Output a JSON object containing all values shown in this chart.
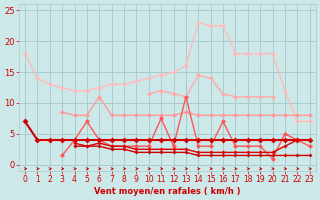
{
  "x": [
    0,
    1,
    2,
    3,
    4,
    5,
    6,
    7,
    8,
    9,
    10,
    11,
    12,
    13,
    14,
    15,
    16,
    17,
    18,
    19,
    20,
    21,
    22,
    23
  ],
  "s1_color": "#ffbbbb",
  "s1": [
    18,
    14,
    13,
    12.5,
    12,
    12,
    12.5,
    13,
    13,
    13.5,
    14,
    14.5,
    15,
    16,
    23,
    22.5,
    22.5,
    18,
    18,
    18,
    18,
    12,
    7,
    7
  ],
  "s2_color": "#ffaaaa",
  "s2": [
    null,
    null,
    null,
    null,
    null,
    null,
    null,
    null,
    null,
    null,
    11.5,
    12,
    11.5,
    11,
    14.5,
    14,
    11.5,
    11,
    11,
    11,
    11,
    null,
    null,
    null
  ],
  "s3_color": "#ff9999",
  "s3": [
    null,
    null,
    null,
    8.5,
    8,
    8,
    11,
    8,
    8,
    8,
    8,
    8,
    8,
    8.5,
    8,
    8,
    8,
    8,
    8,
    8,
    8,
    8,
    8,
    8
  ],
  "s4_color": "#ff5555",
  "s4": [
    null,
    null,
    null,
    1.5,
    4,
    7,
    4,
    3,
    3,
    3,
    3,
    7.5,
    3,
    11,
    3,
    3,
    7,
    3,
    3,
    3,
    1,
    5,
    4,
    3
  ],
  "s5_color": "#cc0000",
  "s5": [
    7,
    4,
    4,
    4,
    4,
    4,
    4,
    4,
    4,
    4,
    4,
    4,
    4,
    4,
    4,
    4,
    4,
    4,
    4,
    4,
    4,
    4,
    4,
    4
  ],
  "s6_color": "#cc0000",
  "s6": [
    null,
    null,
    null,
    null,
    3,
    3,
    3,
    2.5,
    2.5,
    2,
    2,
    2,
    2,
    2,
    1.5,
    1.5,
    1.5,
    1.5,
    1.5,
    1.5,
    1.5,
    1.5,
    1.5,
    1.5
  ],
  "s7_color": "#dd0000",
  "s7": [
    null,
    null,
    null,
    null,
    3.5,
    3,
    3.5,
    3,
    3,
    2.5,
    2.5,
    2.5,
    2.5,
    2.5,
    2,
    2,
    2,
    2,
    2,
    2,
    2,
    3,
    4,
    4
  ],
  "arrow_color": "#cc0000",
  "background_color": "#cce8e8",
  "grid_color": "#aacccc",
  "xlabel": "Vent moyen/en rafales ( km/h )",
  "xlabel_color": "#cc0000",
  "tick_color": "#cc0000",
  "xlim": [
    -0.5,
    23.5
  ],
  "ylim": [
    -1.0,
    26
  ],
  "yticks": [
    0,
    5,
    10,
    15,
    20,
    25
  ],
  "xticks": [
    0,
    1,
    2,
    3,
    4,
    5,
    6,
    7,
    8,
    9,
    10,
    11,
    12,
    13,
    14,
    15,
    16,
    17,
    18,
    19,
    20,
    21,
    22,
    23
  ]
}
